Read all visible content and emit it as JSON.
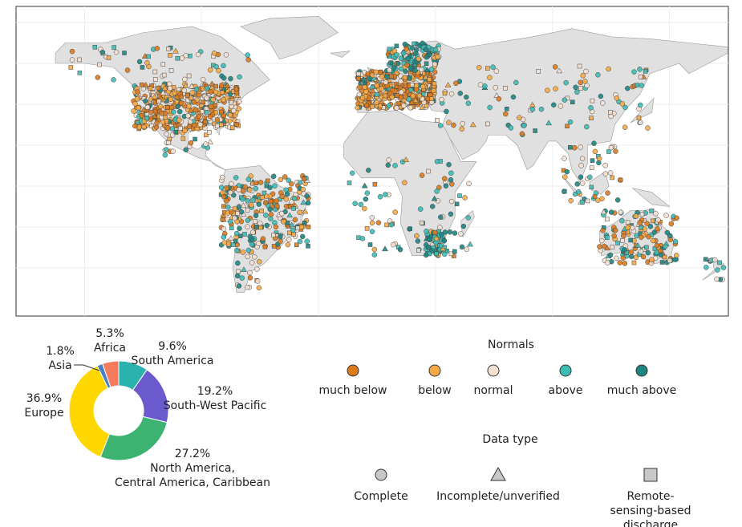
{
  "chart_data": {
    "type": "pie",
    "donut": true,
    "categories": [
      "South America",
      "South-West Pacific",
      "North America,\nCentral America, Caribbean",
      "Europe",
      "Asia",
      "Africa"
    ],
    "values": [
      9.6,
      19.2,
      27.2,
      36.9,
      1.8,
      5.3
    ],
    "value_labels": [
      "9.6%",
      "19.2%",
      "27.2%",
      "36.9%",
      "1.8%",
      "5.3%"
    ],
    "colors": [
      "#2ab3ad",
      "#6a5acd",
      "#3cb371",
      "#ffd700",
      "#4a7fc1",
      "#f47c5c"
    ]
  },
  "legend": {
    "normals": {
      "title": "Normals",
      "items": [
        {
          "label": "much below",
          "color": "#dd7a1e"
        },
        {
          "label": "below",
          "color": "#f6aa45"
        },
        {
          "label": "normal",
          "color": "#f4e0d2"
        },
        {
          "label": "above",
          "color": "#3dbdb6"
        },
        {
          "label": "much above",
          "color": "#1e8682"
        }
      ]
    },
    "data_type": {
      "title": "Data type",
      "color": "#c8c8c8",
      "items": [
        {
          "label": "Complete",
          "shape": "circle"
        },
        {
          "label": "Incomplete/unverified",
          "shape": "triangle"
        },
        {
          "label": "Remote-sensing-based\ndischarge",
          "shape": "square"
        }
      ]
    }
  }
}
